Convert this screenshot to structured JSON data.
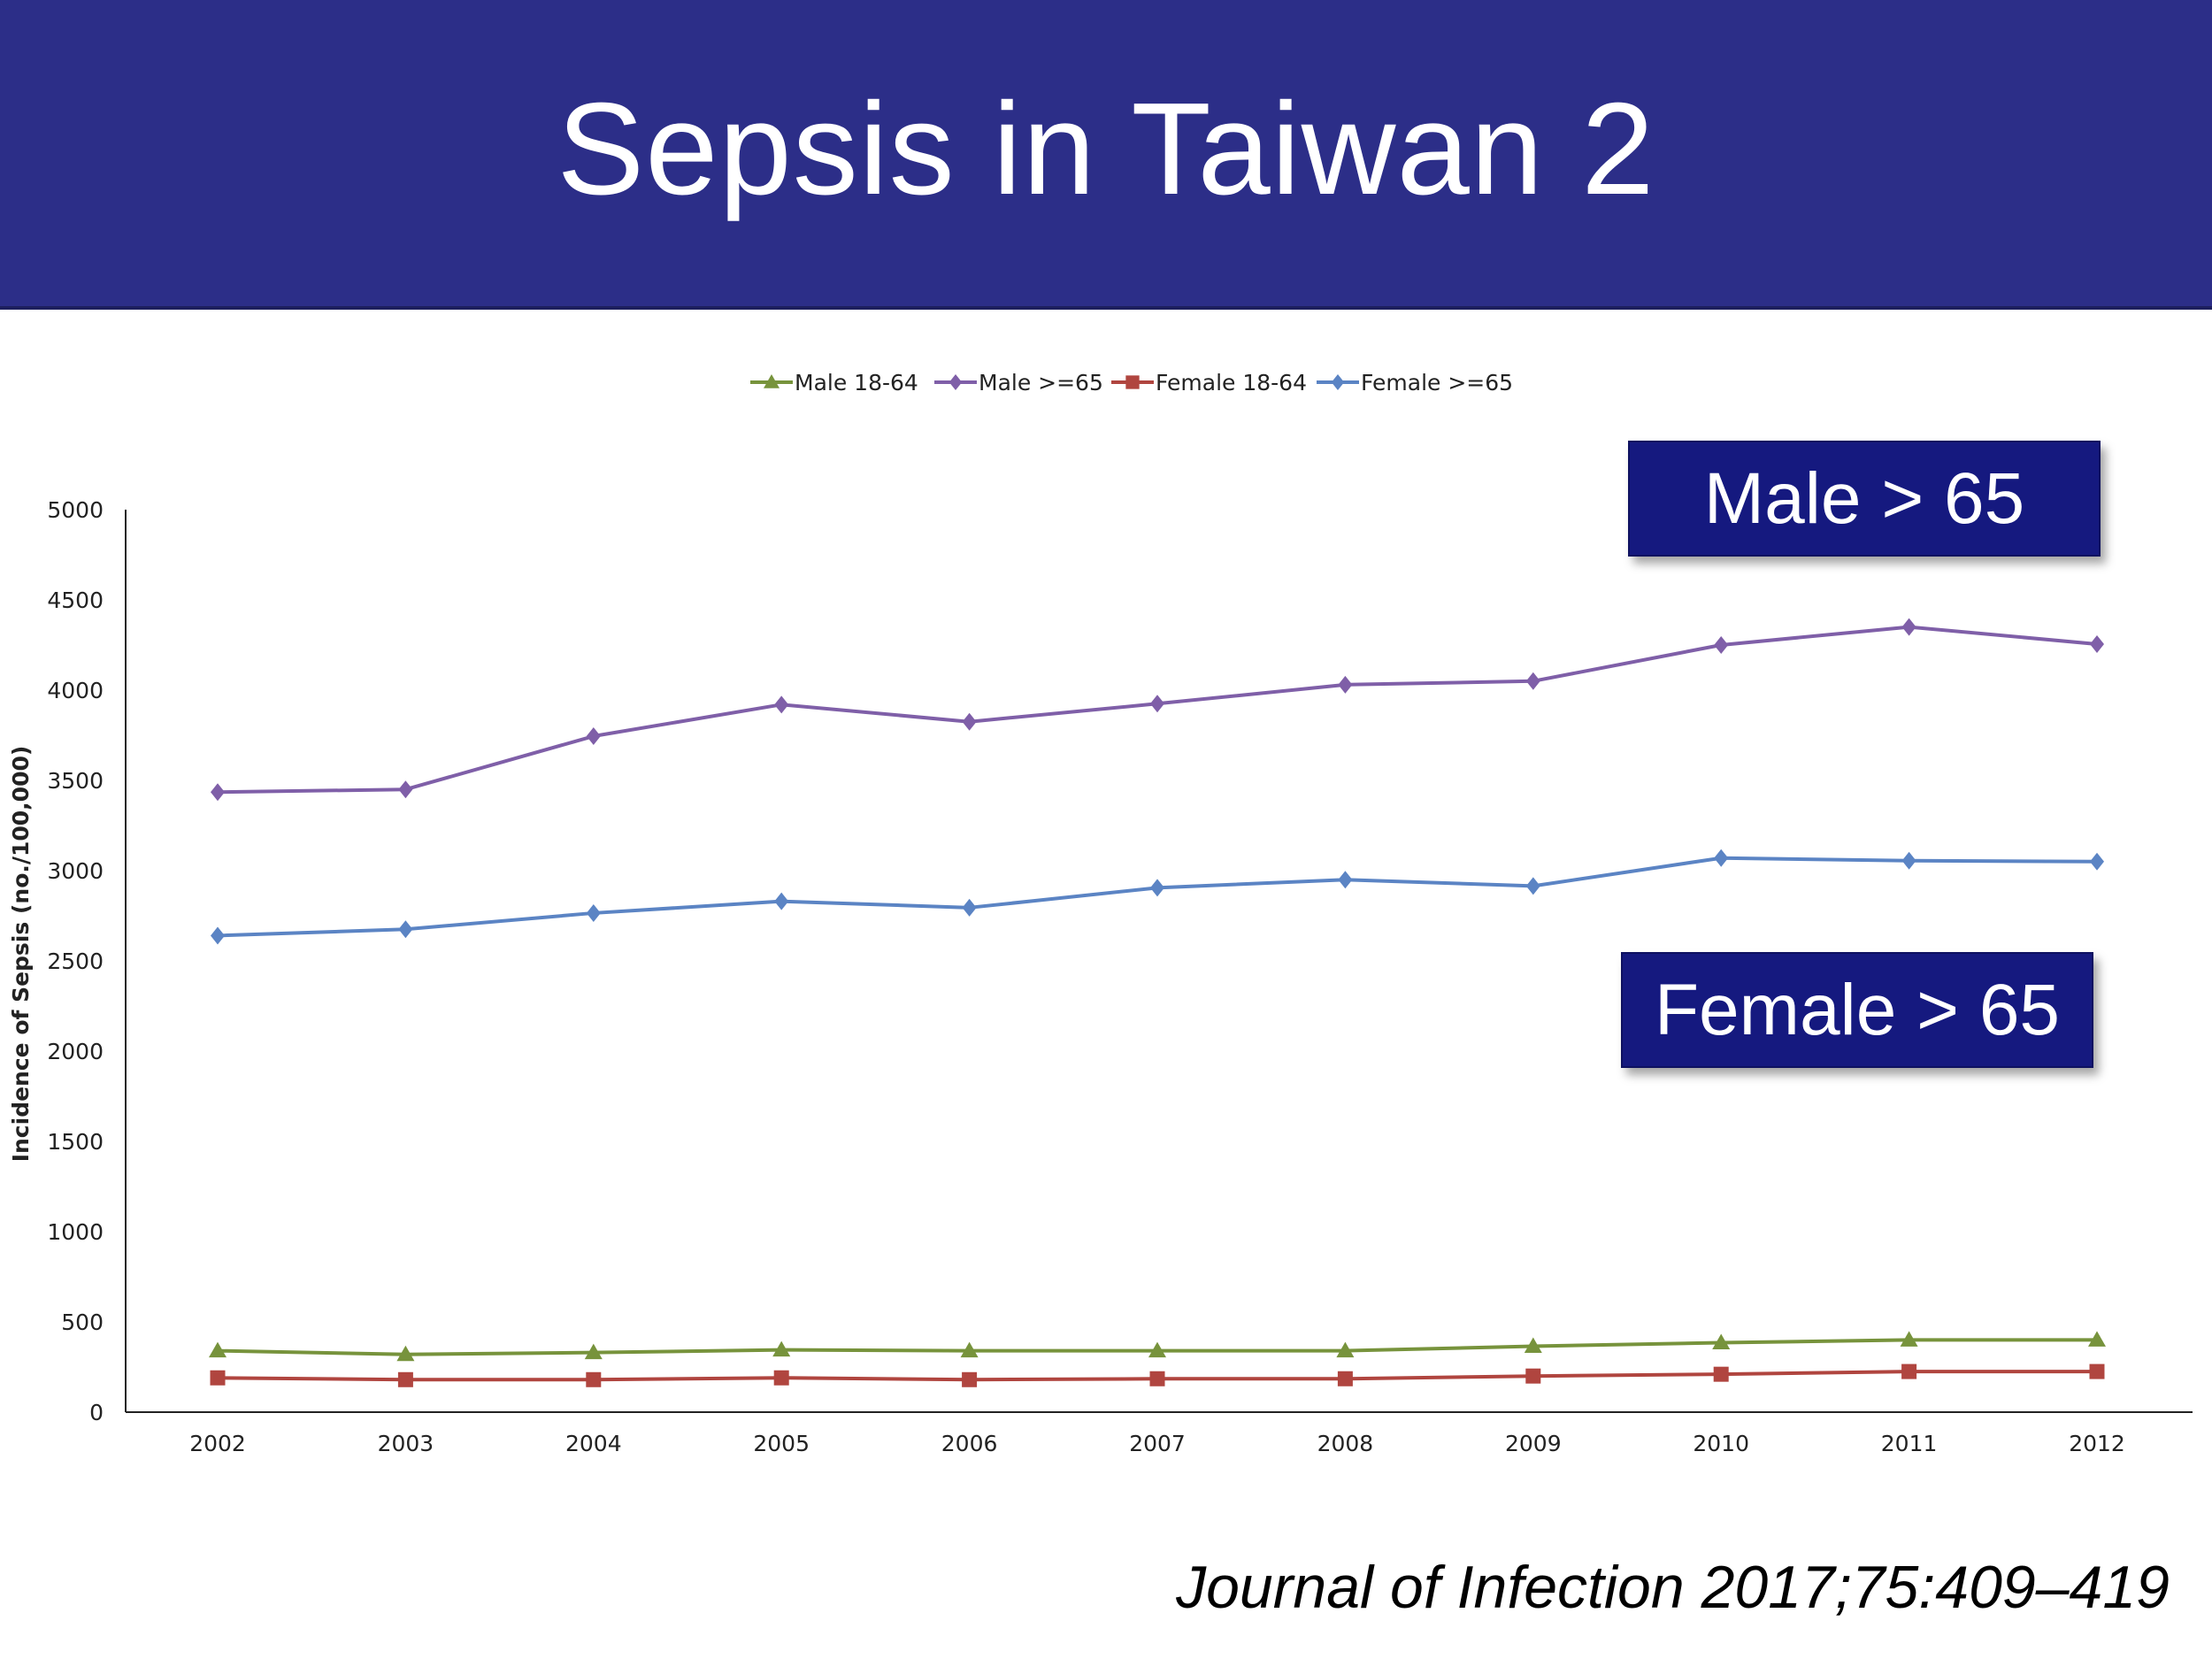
{
  "slide": {
    "title": "Sepsis in Taiwan 2",
    "callouts": {
      "male": "Male > 65",
      "female": "Female > 65"
    },
    "citation": "Journal of Infection 2017;75:409–419"
  },
  "chart_data": {
    "type": "line",
    "title": "",
    "xlabel": "",
    "ylabel": "Incidence of Sepsis  (no./100,000)",
    "ylim": [
      0,
      5000
    ],
    "yticks": [
      0,
      500,
      1000,
      1500,
      2000,
      2500,
      3000,
      3500,
      4000,
      4500,
      5000
    ],
    "categories": [
      "2002",
      "2003",
      "2004",
      "2005",
      "2006",
      "2007",
      "2008",
      "2009",
      "2010",
      "2011",
      "2012"
    ],
    "legend_position": "top-center",
    "series": [
      {
        "name": "Male 18-64",
        "color": "#77933c",
        "marker": "triangle",
        "values": [
          340,
          320,
          330,
          345,
          340,
          340,
          340,
          365,
          385,
          400,
          400
        ]
      },
      {
        "name": "Male >=65",
        "color": "#7f5fa8",
        "marker": "diamond",
        "values": [
          3435,
          3450,
          3745,
          3920,
          3825,
          3925,
          4030,
          4050,
          4250,
          4350,
          4255
        ]
      },
      {
        "name": "Female 18-64",
        "color": "#b0453f",
        "marker": "square",
        "values": [
          190,
          180,
          180,
          190,
          180,
          185,
          185,
          200,
          210,
          225,
          225
        ]
      },
      {
        "name": "Female >=65",
        "color": "#5b84c4",
        "marker": "diamond",
        "values": [
          2640,
          2675,
          2765,
          2830,
          2795,
          2905,
          2950,
          2915,
          3070,
          3055,
          3050
        ]
      }
    ]
  }
}
